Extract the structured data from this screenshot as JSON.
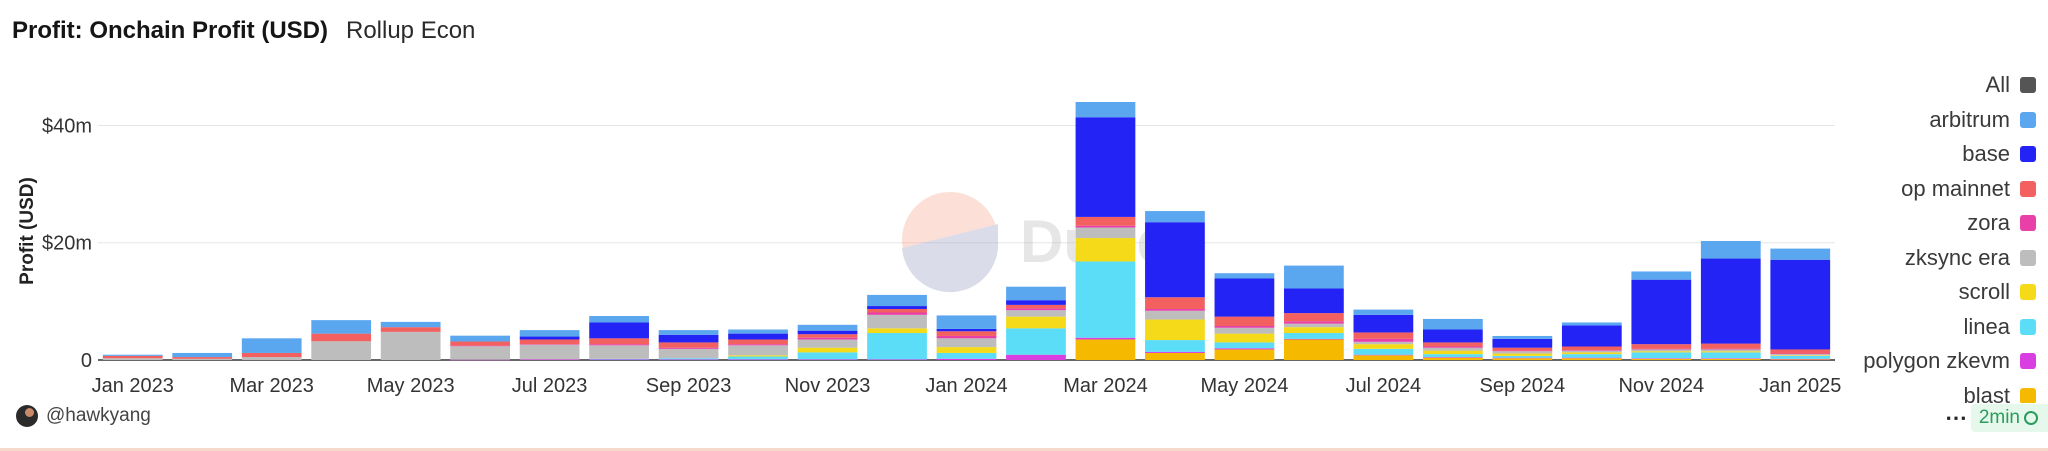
{
  "header": {
    "title": "Profit: Onchain Profit (USD)",
    "subtitle": "Rollup Econ"
  },
  "watermark": "Dune",
  "footer": {
    "author": "@hawkyang",
    "more": "⋯",
    "refresh": "2min"
  },
  "legend": [
    {
      "label": "All",
      "color": "#555555"
    },
    {
      "label": "arbitrum",
      "color": "#5aa7f0"
    },
    {
      "label": "base",
      "color": "#2323f5"
    },
    {
      "label": "op mainnet",
      "color": "#f26060"
    },
    {
      "label": "zora",
      "color": "#e93fa8"
    },
    {
      "label": "zksync era",
      "color": "#bdbdbd"
    },
    {
      "label": "scroll",
      "color": "#f5da1a"
    },
    {
      "label": "linea",
      "color": "#5bdcf7"
    },
    {
      "label": "polygon zkevm",
      "color": "#d93ee0"
    },
    {
      "label": "blast",
      "color": "#f5b900"
    }
  ],
  "chart_data": {
    "type": "bar",
    "stacked": true,
    "ylabel": "Profit (USD)",
    "xlabel": "",
    "ylim": [
      0,
      44000000
    ],
    "y_ticks": [
      {
        "value": 0,
        "label": "0"
      },
      {
        "value": 20000000,
        "label": "$20m"
      },
      {
        "value": 40000000,
        "label": "$40m"
      }
    ],
    "x_tick_labels": [
      "Jan 2023",
      "Mar 2023",
      "May 2023",
      "Jul 2023",
      "Sep 2023",
      "Nov 2023",
      "Jan 2024",
      "Mar 2024",
      "May 2024",
      "Jul 2024",
      "Sep 2024",
      "Nov 2024",
      "Jan 2025"
    ],
    "categories": [
      "2023-01",
      "2023-02",
      "2023-03",
      "2023-04",
      "2023-05",
      "2023-06",
      "2023-07",
      "2023-08",
      "2023-09",
      "2023-10",
      "2023-11",
      "2023-12",
      "2024-01",
      "2024-02",
      "2024-03",
      "2024-04",
      "2024-05",
      "2024-06",
      "2024-07",
      "2024-08",
      "2024-09",
      "2024-10",
      "2024-11",
      "2024-12",
      "2025-01"
    ],
    "series": [
      {
        "name": "blast",
        "values": [
          0,
          0,
          0,
          0,
          0,
          0,
          0,
          0,
          0,
          0,
          0,
          0,
          0,
          0,
          3.5,
          1.2,
          1.8,
          3.5,
          0.8,
          0.4,
          0.3,
          0.3,
          0.2,
          0.2,
          0.1
        ]
      },
      {
        "name": "polygon zkevm",
        "values": [
          0,
          0,
          0,
          0,
          0,
          0.05,
          0.1,
          0.1,
          0.1,
          0.1,
          0.1,
          0.1,
          0.2,
          0.9,
          0.3,
          0.2,
          0.2,
          0.1,
          0.1,
          0.1,
          0.1,
          0.1,
          0.1,
          0.1,
          0.1
        ]
      },
      {
        "name": "linea",
        "values": [
          0,
          0,
          0,
          0,
          0,
          0,
          0,
          0.1,
          0.2,
          0.5,
          1.2,
          4.5,
          1.0,
          4.5,
          13.0,
          2.0,
          1.0,
          1.0,
          1.0,
          0.5,
          0.3,
          0.6,
          1.0,
          1.0,
          0.5
        ]
      },
      {
        "name": "scroll",
        "values": [
          0,
          0,
          0,
          0,
          0,
          0,
          0,
          0,
          0,
          0.2,
          0.8,
          0.8,
          1.0,
          2.0,
          4.0,
          3.5,
          1.5,
          1.0,
          0.8,
          0.6,
          0.4,
          0.3,
          0.2,
          0.2,
          0.1
        ]
      },
      {
        "name": "zksync era",
        "values": [
          0.3,
          0.2,
          0.5,
          3.2,
          4.8,
          2.3,
          2.5,
          2.3,
          1.6,
          1.7,
          1.4,
          2.3,
          1.5,
          1.1,
          1.8,
          1.5,
          1.0,
          0.6,
          0.4,
          0.5,
          0.4,
          0.3,
          0.3,
          0.3,
          0.2
        ]
      },
      {
        "name": "zora",
        "values": [
          0,
          0,
          0,
          0,
          0,
          0.1,
          0.1,
          0.2,
          0.2,
          0.2,
          0.3,
          0.4,
          0.4,
          0.3,
          0.3,
          0.3,
          0.3,
          0.4,
          0.5,
          0.2,
          0.1,
          0.1,
          0.1,
          0.1,
          0.1
        ]
      },
      {
        "name": "op mainnet",
        "values": [
          0.4,
          0.3,
          0.7,
          1.3,
          0.8,
          0.7,
          0.8,
          1.0,
          0.9,
          0.8,
          0.6,
          0.6,
          0.8,
          0.6,
          1.5,
          2.0,
          1.6,
          1.4,
          1.1,
          0.7,
          0.5,
          0.6,
          0.8,
          0.9,
          0.7
        ]
      },
      {
        "name": "base",
        "values": [
          0,
          0,
          0,
          0,
          0,
          0,
          0.5,
          2.7,
          1.3,
          1.0,
          0.6,
          0.5,
          0.4,
          0.8,
          17.0,
          12.8,
          6.5,
          4.2,
          3.0,
          2.2,
          1.5,
          3.6,
          11.0,
          14.5,
          15.3
        ]
      },
      {
        "name": "arbitrum",
        "values": [
          0.2,
          0.7,
          2.5,
          2.3,
          0.9,
          1.0,
          1.1,
          1.1,
          0.8,
          0.7,
          1.0,
          1.9,
          2.3,
          2.3,
          2.6,
          1.9,
          0.9,
          3.9,
          0.9,
          1.8,
          0.5,
          0.5,
          1.4,
          3.0,
          1.9
        ]
      }
    ]
  }
}
